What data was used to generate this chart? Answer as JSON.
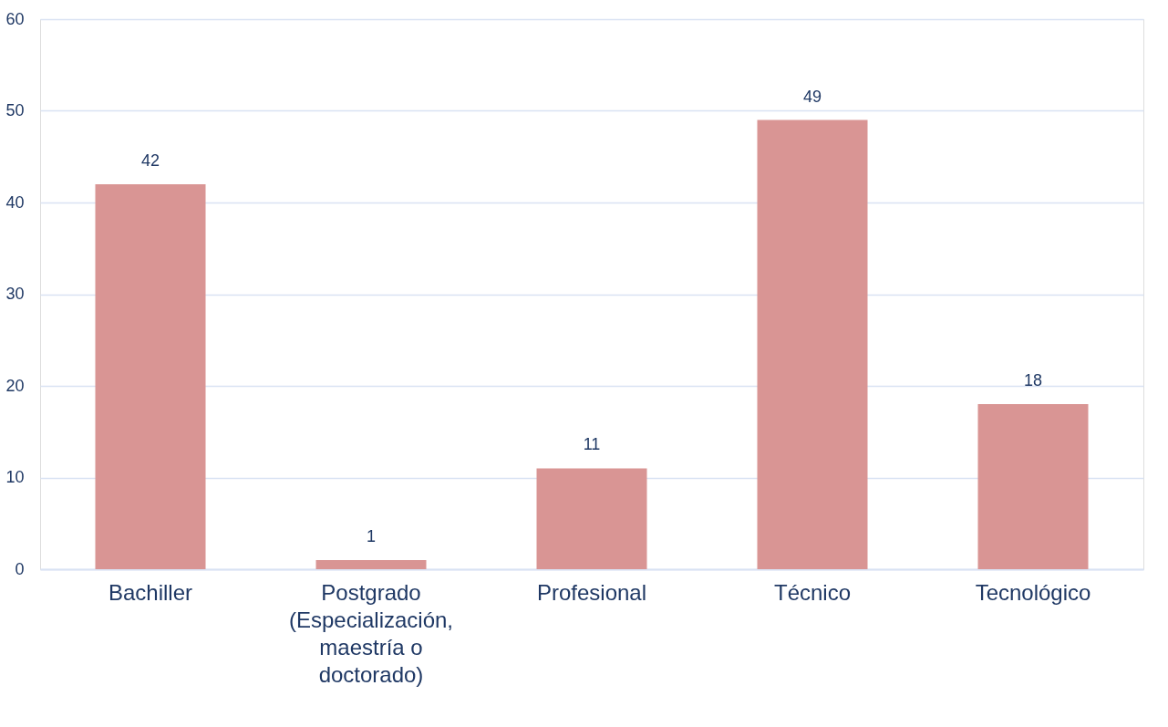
{
  "chart_data": {
    "type": "bar",
    "categories": [
      "Bachiller",
      "Postgrado (Especialización, maestría o doctorado)",
      "Profesional",
      "Técnico",
      "Tecnológico"
    ],
    "values": [
      42,
      1,
      11,
      49,
      18
    ],
    "color": "#d99594",
    "ylim": [
      0,
      60
    ],
    "yticks": [
      0,
      10,
      20,
      30,
      40,
      50,
      60
    ],
    "grid": "y",
    "data_labels": true
  }
}
